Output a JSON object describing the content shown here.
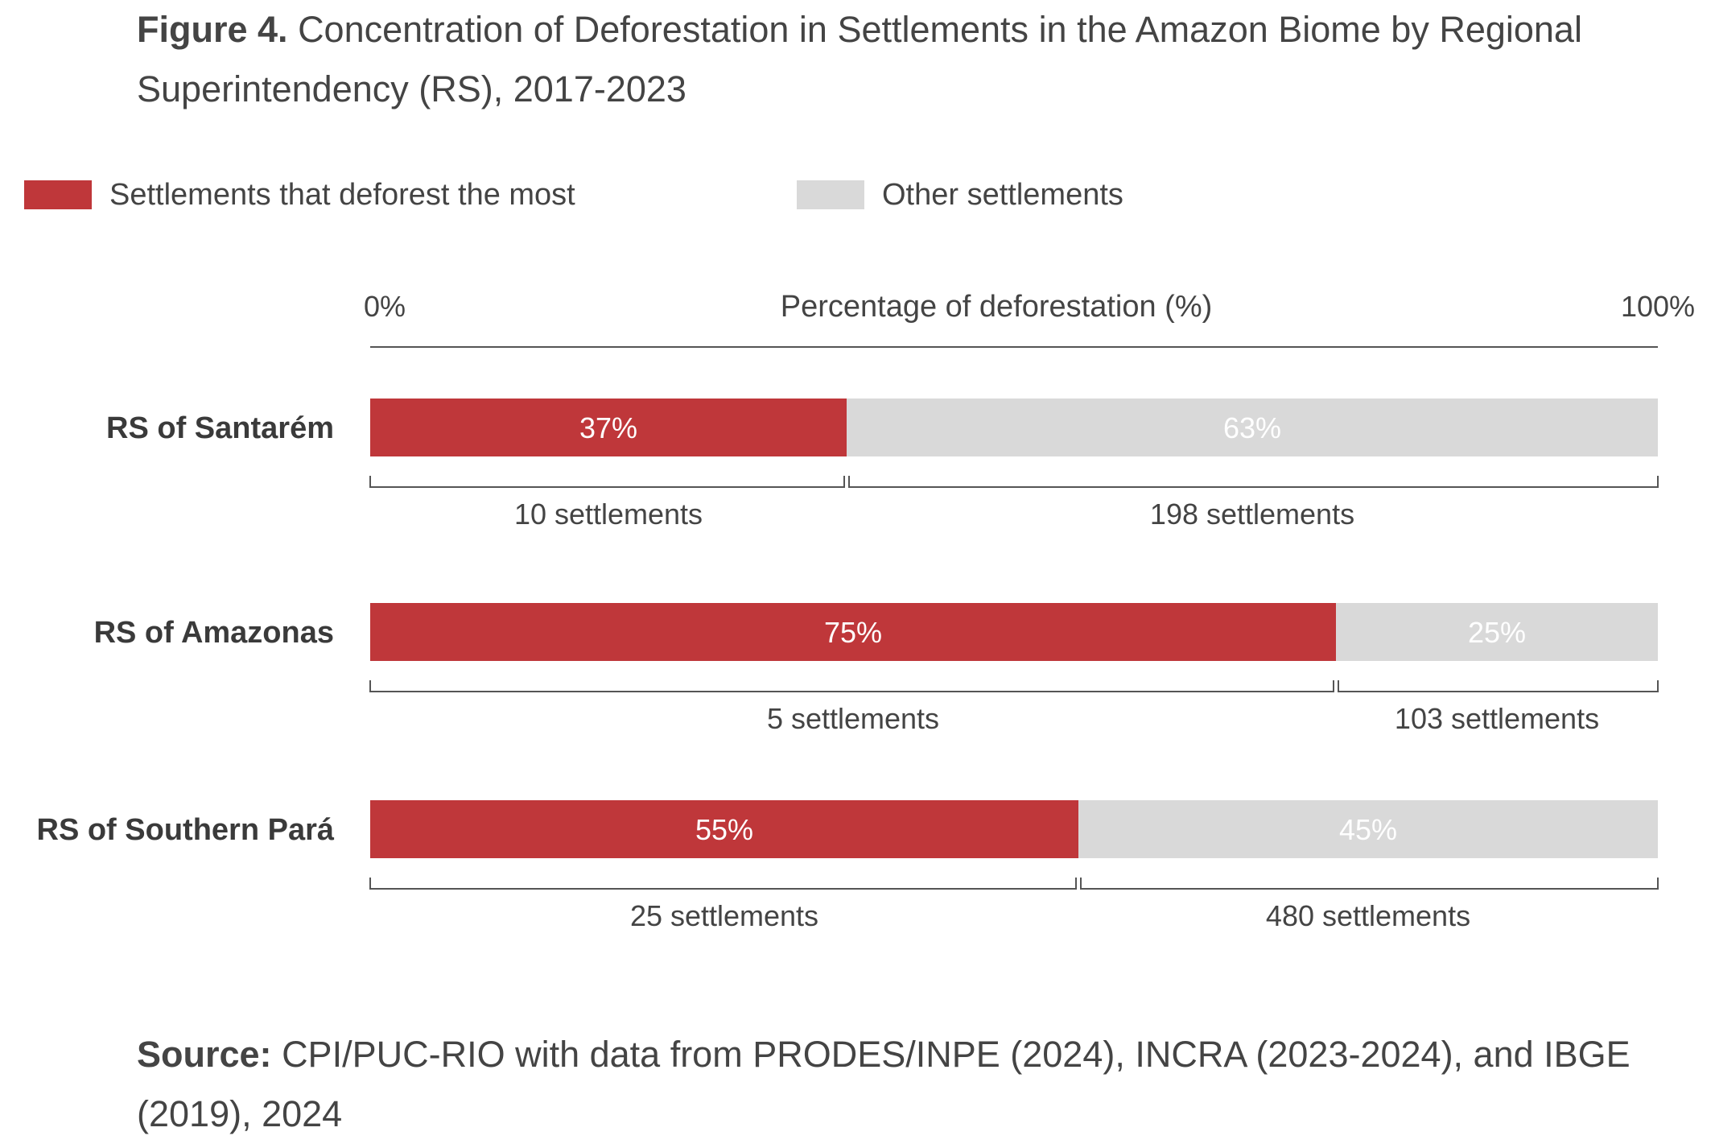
{
  "title": {
    "bold": "Figure 4.",
    "text": "Concentration of Deforestation in Settlements in the Amazon Biome by Regional Superintendency (RS), 2017-2023"
  },
  "legend": [
    {
      "label": "Settlements that deforest the most",
      "color": "#bf373a"
    },
    {
      "label": "Other settlements",
      "color": "#d9d9d9"
    }
  ],
  "chart_data": {
    "type": "bar",
    "orientation": "horizontal",
    "stacked": true,
    "categories": [
      "RS of Santarém",
      "RS of Amazonas",
      "RS of Southern Pará"
    ],
    "series": [
      {
        "name": "Settlements that deforest the most",
        "values": [
          37,
          75,
          55
        ],
        "color": "#bf373a"
      },
      {
        "name": "Other settlements",
        "values": [
          63,
          25,
          45
        ],
        "color": "#d9d9d9"
      }
    ],
    "data_labels": [
      [
        "37%",
        "75%",
        "55%"
      ],
      [
        "63%",
        "25%",
        "45%"
      ]
    ],
    "settlement_counts": [
      [
        "10 settlements",
        "5 settlements",
        "25 settlements"
      ],
      [
        "198 settlements",
        "103 settlements",
        "480 settlements"
      ]
    ],
    "xlabel": "Percentage of deforestation (%)",
    "xlim": [
      0,
      100
    ],
    "x_tick_labels": [
      "0%",
      "100%"
    ],
    "legend_position": "top-left",
    "grid": false
  },
  "source": {
    "bold": "Source:",
    "text": "CPI/PUC-RIO with data from PRODES/INPE (2024), INCRA (2023-2024), and IBGE (2019), 2024"
  }
}
